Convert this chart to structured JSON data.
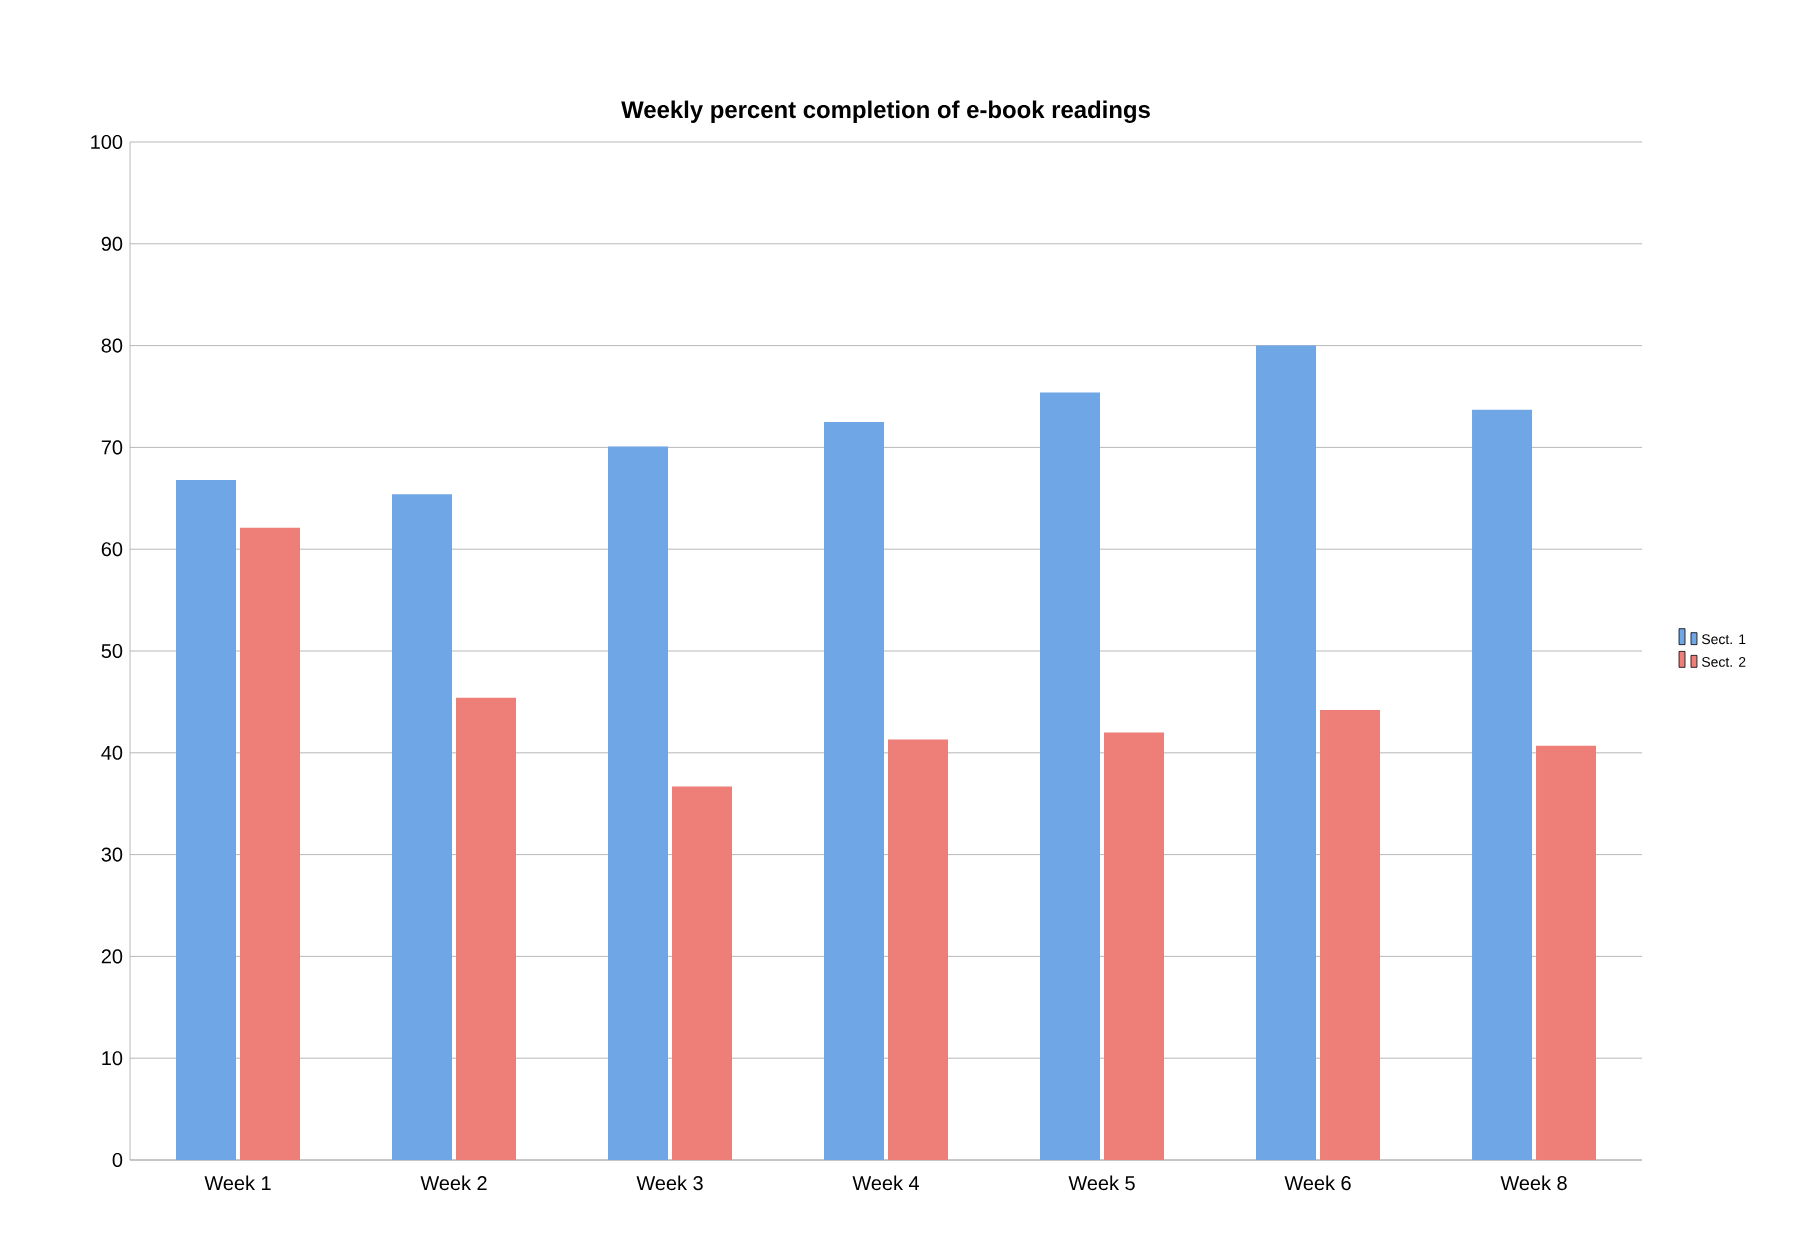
{
  "chart_data": {
    "type": "bar",
    "title": "Weekly percent completion of e-book readings",
    "categories": [
      "Week 1",
      "Week 2",
      "Week 3",
      "Week 4",
      "Week 5",
      "Week 6",
      "Week 8"
    ],
    "series": [
      {
        "name": "Sect. 1",
        "color": "#6fa6e6",
        "values": [
          66.8,
          65.4,
          70.1,
          72.5,
          75.4,
          80.0,
          73.7
        ]
      },
      {
        "name": "Sect. 2",
        "color": "#ee7f78",
        "values": [
          62.1,
          45.4,
          36.7,
          41.3,
          42.0,
          44.2,
          40.7
        ]
      }
    ],
    "ylim": [
      0,
      100
    ],
    "yticks": [
      0,
      10,
      20,
      30,
      40,
      50,
      60,
      70,
      80,
      90,
      100
    ],
    "grid": "y",
    "legend": "right"
  }
}
